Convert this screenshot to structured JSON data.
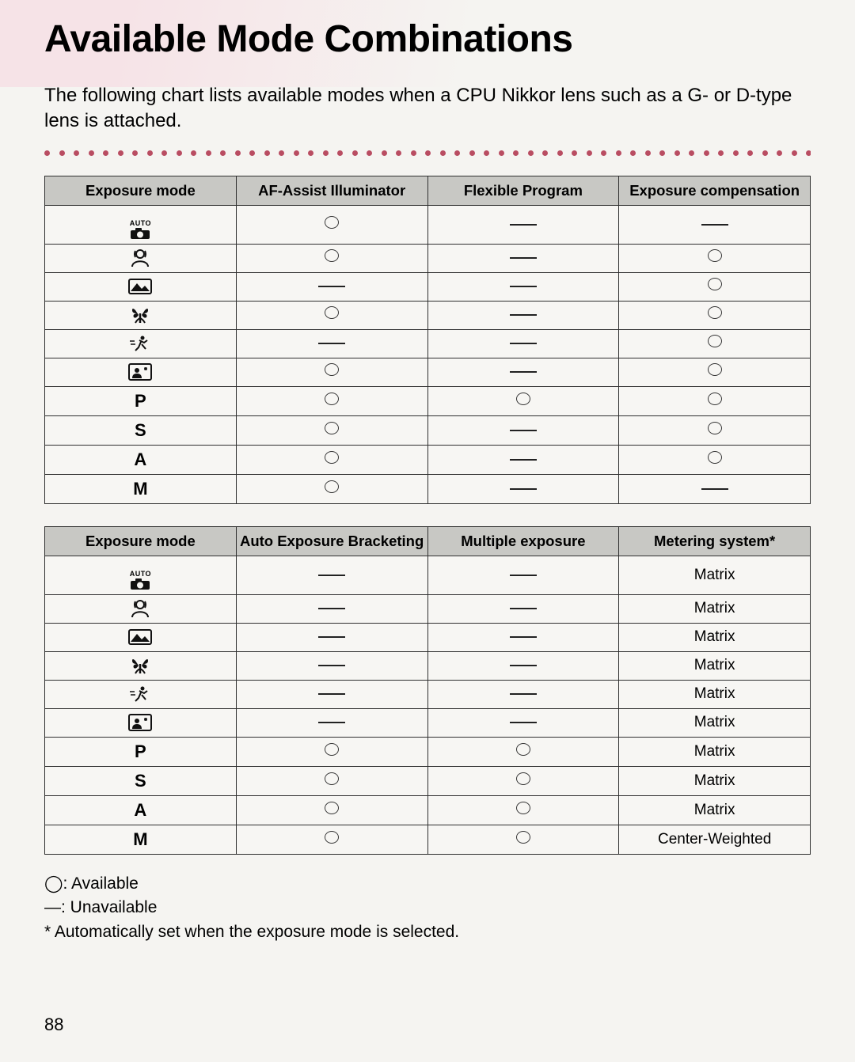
{
  "page": {
    "title": "Available Mode Combinations",
    "intro": "The following chart lists available modes when a CPU Nikkor lens such as a G- or D-type lens is attached.",
    "page_number": "88"
  },
  "colors": {
    "dot": "#b94d62",
    "table_border": "#2f2f2f",
    "header_bg": "#c8c8c4",
    "page_bg": "#f5f4f1"
  },
  "modes": [
    {
      "id": "auto",
      "label_type": "icon",
      "label": "AUTO"
    },
    {
      "id": "portrait",
      "label_type": "icon",
      "label": ""
    },
    {
      "id": "landscape",
      "label_type": "icon",
      "label": ""
    },
    {
      "id": "closeup",
      "label_type": "icon",
      "label": ""
    },
    {
      "id": "sports",
      "label_type": "icon",
      "label": ""
    },
    {
      "id": "night",
      "label_type": "icon",
      "label": ""
    },
    {
      "id": "P",
      "label_type": "text",
      "label": "P"
    },
    {
      "id": "S",
      "label_type": "text",
      "label": "S"
    },
    {
      "id": "A",
      "label_type": "text",
      "label": "A"
    },
    {
      "id": "M",
      "label_type": "text",
      "label": "M"
    }
  ],
  "table1": {
    "columns": [
      "Exposure mode",
      "AF-Assist Illuminator",
      "Flexible Program",
      "Exposure compensation"
    ],
    "rows": [
      [
        "◯",
        "—",
        "—"
      ],
      [
        "◯",
        "—",
        "◯"
      ],
      [
        "—",
        "—",
        "◯"
      ],
      [
        "◯",
        "—",
        "◯"
      ],
      [
        "—",
        "—",
        "◯"
      ],
      [
        "◯",
        "—",
        "◯"
      ],
      [
        "◯",
        "◯",
        "◯"
      ],
      [
        "◯",
        "—",
        "◯"
      ],
      [
        "◯",
        "—",
        "◯"
      ],
      [
        "◯",
        "—",
        "—"
      ]
    ]
  },
  "table2": {
    "columns": [
      "Exposure mode",
      "Auto Exposure Bracketing",
      "Multiple exposure",
      "Metering system*"
    ],
    "rows": [
      [
        "—",
        "—",
        "Matrix"
      ],
      [
        "—",
        "—",
        "Matrix"
      ],
      [
        "—",
        "—",
        "Matrix"
      ],
      [
        "—",
        "—",
        "Matrix"
      ],
      [
        "—",
        "—",
        "Matrix"
      ],
      [
        "—",
        "—",
        "Matrix"
      ],
      [
        "◯",
        "◯",
        "Matrix"
      ],
      [
        "◯",
        "◯",
        "Matrix"
      ],
      [
        "◯",
        "◯",
        "Matrix"
      ],
      [
        "◯",
        "◯",
        "Center-Weighted"
      ]
    ]
  },
  "legend": {
    "available": "◯: Available",
    "unavailable": "—: Unavailable",
    "footnote": "* Automatically set when the exposure mode is selected."
  }
}
